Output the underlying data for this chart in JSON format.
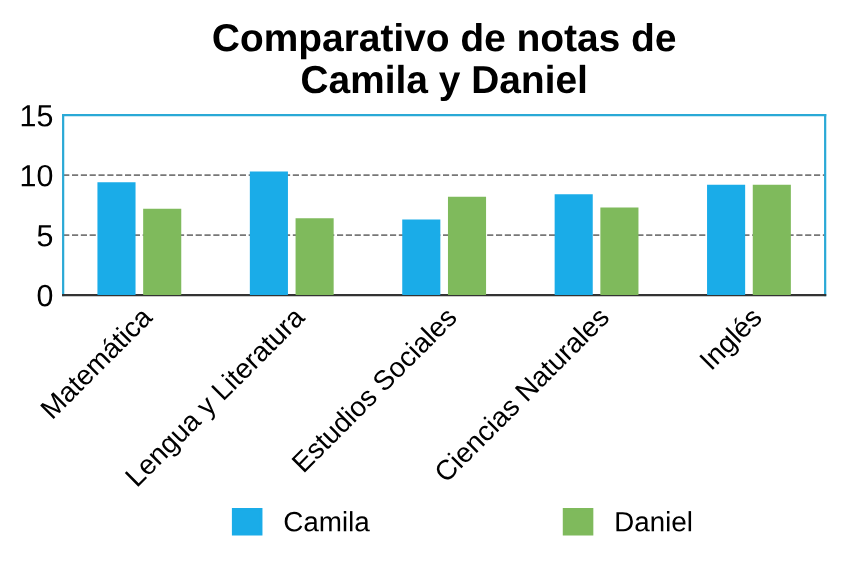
{
  "chart_data": {
    "type": "bar",
    "title": "Comparativo de notas de\nCamila y Daniel",
    "categories": [
      "Matemática",
      "Lengua y Literatura",
      "Estudios Sociales",
      "Ciencias Naturales",
      "Inglés"
    ],
    "series": [
      {
        "name": "Camila",
        "color": "#1aace8",
        "values": [
          9.4,
          10.3,
          6.3,
          8.4,
          9.2
        ]
      },
      {
        "name": "Daniel",
        "color": "#7fba5c",
        "values": [
          7.2,
          6.4,
          8.2,
          7.3,
          9.2
        ]
      }
    ],
    "ylim": [
      0,
      15
    ],
    "yticks": [
      0,
      5,
      10,
      15
    ],
    "grid": "y",
    "legend": "bottom"
  }
}
